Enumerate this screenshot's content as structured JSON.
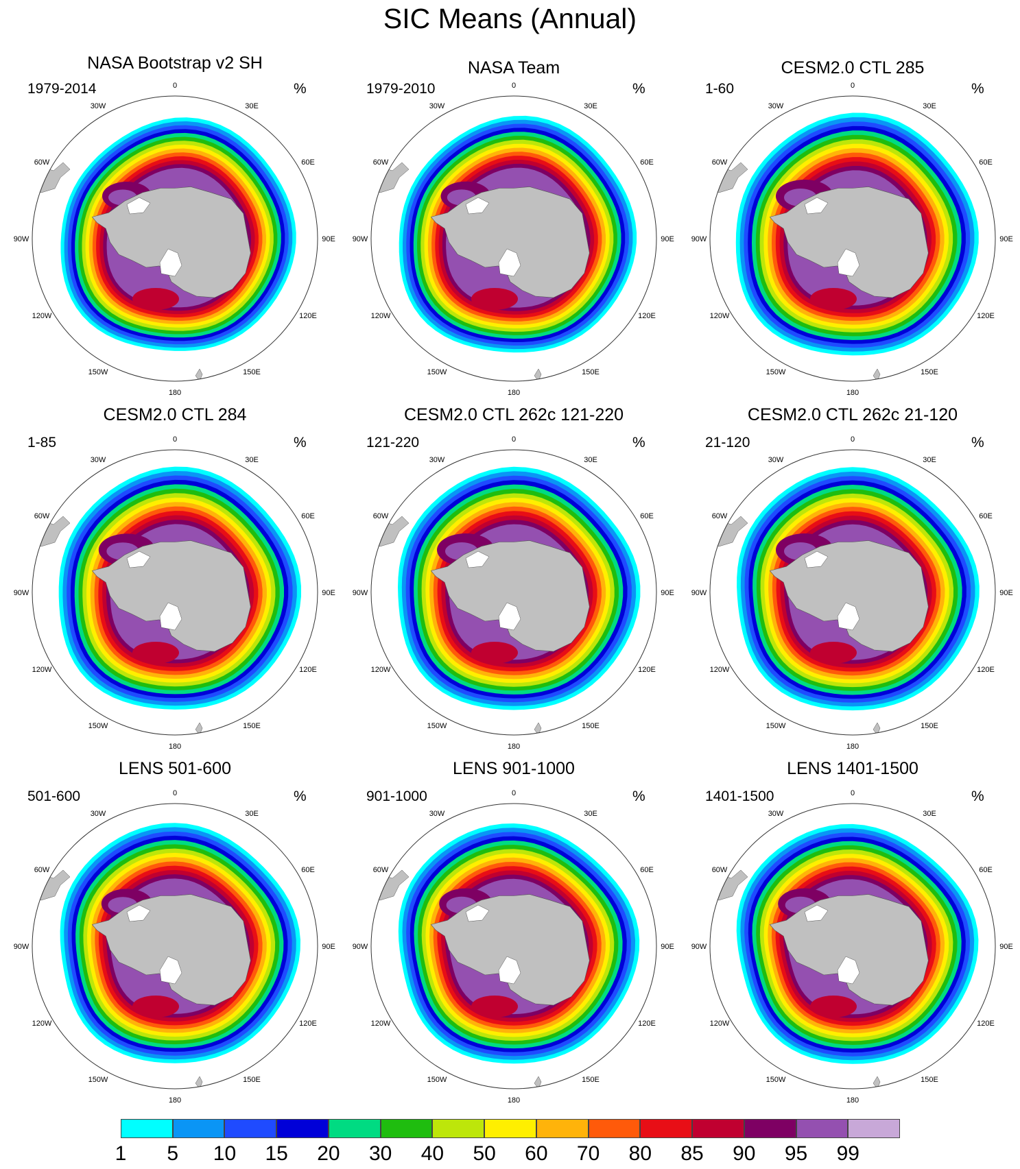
{
  "figure": {
    "title": "SIC Means (Annual)"
  },
  "panels": [
    {
      "title": "NASA Bootstrap v2 SH",
      "period": "1979-2014",
      "unit": "%"
    },
    {
      "title": "NASA Team",
      "period": "1979-2010",
      "unit": "%"
    },
    {
      "title": "CESM2.0 CTL 285",
      "period": "1-60",
      "unit": "%"
    },
    {
      "title": "CESM2.0 CTL 284",
      "period": "1-85",
      "unit": "%"
    },
    {
      "title": "CESM2.0 CTL 262c 121-220",
      "period": "121-220",
      "unit": "%"
    },
    {
      "title": "CESM2.0 CTL 262c 21-120",
      "period": "21-120",
      "unit": "%"
    },
    {
      "title": "LENS 501-600",
      "period": "501-600",
      "unit": "%"
    },
    {
      "title": "LENS 901-1000",
      "period": "901-1000",
      "unit": "%"
    },
    {
      "title": "LENS 1401-1500",
      "period": "1401-1500",
      "unit": "%"
    }
  ],
  "longitude_labels": [
    {
      "text": "0",
      "lon": 0
    },
    {
      "text": "30E",
      "lon": 30
    },
    {
      "text": "60E",
      "lon": 60
    },
    {
      "text": "90E",
      "lon": 90
    },
    {
      "text": "120E",
      "lon": 120
    },
    {
      "text": "150E",
      "lon": 150
    },
    {
      "text": "180",
      "lon": 180
    },
    {
      "text": "150W",
      "lon": 210
    },
    {
      "text": "120W",
      "lon": 240
    },
    {
      "text": "90W",
      "lon": 270
    },
    {
      "text": "60W",
      "lon": 300
    },
    {
      "text": "30W",
      "lon": 330
    }
  ],
  "colorbar": {
    "levels": [
      "1",
      "5",
      "10",
      "15",
      "20",
      "30",
      "40",
      "50",
      "60",
      "70",
      "80",
      "85",
      "90",
      "95",
      "99"
    ],
    "colors": [
      "#00ffff",
      "#0a95f5",
      "#1f4bff",
      "#0000d8",
      "#00db82",
      "#1fbd0f",
      "#bde60a",
      "#ffef00",
      "#ffb30a",
      "#ff5a0a",
      "#e80e16",
      "#c00030",
      "#7e0063",
      "#9450b0",
      "#c8a8d8"
    ]
  },
  "map_colors": {
    "land": "#c0c0c0",
    "ocean": "#ffffff",
    "coast": "#555555"
  }
}
